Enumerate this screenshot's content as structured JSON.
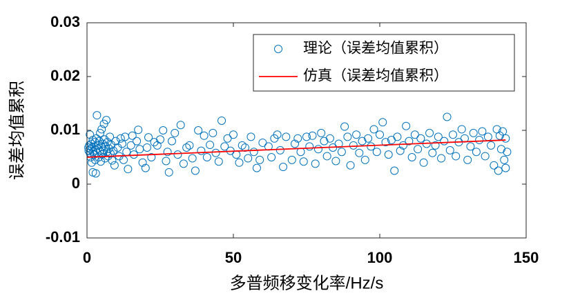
{
  "chart_data": {
    "type": "scatter",
    "xlabel": "多普频移变化率/Hz/s",
    "ylabel": "误差均值累积",
    "xlim": [
      0,
      150
    ],
    "xticks": [
      0,
      50,
      100,
      150
    ],
    "ylim": [
      -0.01,
      0.03
    ],
    "yticks": [
      -0.01,
      0,
      0.01,
      0.02,
      0.03
    ],
    "legend": "upper right",
    "series": [
      {
        "name": "理论（误差均值累积）",
        "kind": "scatter",
        "color": "#0072bd",
        "x": [
          0.5,
          0.6,
          0.8,
          1,
          1,
          1.2,
          1.3,
          1.5,
          1.6,
          1.8,
          2,
          2,
          2.2,
          2.4,
          2.5,
          2.7,
          2.8,
          3,
          3,
          3.2,
          3.4,
          3.5,
          3.7,
          3.8,
          4,
          4.2,
          4.4,
          4.5,
          4.7,
          4.9,
          5,
          5.2,
          5.4,
          5.6,
          5.8,
          6,
          6.2,
          6.4,
          6.6,
          6.8,
          7,
          7.2,
          7.5,
          7.8,
          8,
          8.3,
          8.6,
          9,
          9.4,
          9.8,
          10.5,
          11,
          11.5,
          12,
          12.5,
          13,
          13.5,
          14,
          15,
          15.5,
          16,
          17,
          17.5,
          18,
          19,
          20,
          20.5,
          21,
          22,
          23,
          24,
          25,
          26,
          27,
          27.5,
          28,
          29,
          30,
          31,
          32,
          33,
          34,
          35,
          36,
          37,
          38,
          39,
          40,
          41,
          42,
          43,
          44,
          45,
          46,
          47,
          48,
          49,
          50,
          51,
          52,
          53,
          54,
          55,
          56,
          57,
          58,
          59,
          60,
          62,
          63,
          64,
          65,
          66,
          67,
          68,
          70,
          71,
          72,
          73,
          74,
          75,
          76,
          77,
          78,
          79,
          80,
          81,
          82,
          83,
          84,
          85,
          86,
          87,
          88,
          89,
          90,
          91,
          92,
          93,
          94,
          95,
          96,
          97,
          98,
          99,
          100,
          101,
          102,
          103,
          104,
          105,
          106,
          107,
          108,
          109,
          110,
          111,
          112,
          113,
          114,
          115,
          116,
          117,
          118,
          119,
          120,
          121,
          122,
          123,
          124,
          125,
          126,
          127,
          128,
          129,
          130,
          131,
          132,
          133,
          134,
          135,
          136,
          137,
          138,
          139,
          140,
          140.5,
          141,
          141.5,
          142,
          142.5,
          143,
          143,
          143.5
        ],
        "values": [
          0.0068,
          0.0062,
          0.0072,
          0.0058,
          0.0092,
          0.0065,
          0.005,
          0.0075,
          0.004,
          0.0068,
          0.0082,
          0.0022,
          0.006,
          0.0055,
          0.007,
          0.0078,
          0.0045,
          0.0063,
          0.002,
          0.0085,
          0.0128,
          0.0058,
          0.0066,
          0.0072,
          0.005,
          0.008,
          0.0061,
          0.0095,
          0.0042,
          0.0069,
          0.0102,
          0.0056,
          0.0075,
          0.0064,
          0.0112,
          0.0083,
          0.0048,
          0.007,
          0.0119,
          0.006,
          0.0078,
          0.0052,
          0.0066,
          0.0088,
          0.0057,
          0.0073,
          0.0044,
          0.0062,
          0.0035,
          0.008,
          0.0068,
          0.0052,
          0.0085,
          0.0075,
          0.0045,
          0.0088,
          0.006,
          0.0028,
          0.0072,
          0.009,
          0.0055,
          0.008,
          0.0101,
          0.0065,
          0.004,
          0.003,
          0.0068,
          0.0087,
          0.005,
          0.0078,
          0.0072,
          0.0083,
          0.01,
          0.0043,
          0.006,
          0.0022,
          0.008,
          0.0095,
          0.0055,
          0.011,
          0.0038,
          0.0068,
          0.0072,
          0.0048,
          0.0025,
          0.01,
          0.0062,
          0.009,
          0.005,
          0.0073,
          0.0095,
          0.0058,
          0.0042,
          0.0118,
          0.007,
          0.0085,
          0.0062,
          0.0092,
          0.0055,
          0.004,
          0.0072,
          0.0068,
          0.0048,
          0.0088,
          0.006,
          0.003,
          0.0045,
          0.0077,
          0.007,
          0.005,
          0.0085,
          0.0092,
          0.0063,
          0.0032,
          0.0088,
          0.0045,
          0.0075,
          0.0085,
          0.006,
          0.0042,
          0.0088,
          0.007,
          0.009,
          0.0038,
          0.0065,
          0.0095,
          0.008,
          0.0052,
          0.0085,
          0.0068,
          0.0043,
          0.0075,
          0.006,
          0.0107,
          0.0088,
          0.0035,
          0.0072,
          0.0092,
          0.0058,
          0.008,
          0.0045,
          0.0085,
          0.007,
          0.0102,
          0.006,
          0.0092,
          0.0115,
          0.0078,
          0.0055,
          0.0082,
          0.0025,
          0.0088,
          0.0062,
          0.0072,
          0.0108,
          0.008,
          0.005,
          0.0092,
          0.0065,
          0.0085,
          0.004,
          0.0075,
          0.0095,
          0.0058,
          0.0072,
          0.0088,
          0.0048,
          0.008,
          0.0125,
          0.0063,
          0.0092,
          0.0052,
          0.0078,
          0.0102,
          0.0085,
          0.0045,
          0.007,
          0.0095,
          0.006,
          0.0082,
          0.0098,
          0.0052,
          0.0088,
          0.0072,
          0.0035,
          0.0102,
          0.0025,
          0.009,
          0.0065,
          0.0098,
          0.0045,
          0.0085,
          0.003,
          0.006
        ]
      },
      {
        "name": "仿真（误差均值累积）",
        "kind": "line",
        "color": "#ff0000",
        "x": [
          0,
          143
        ],
        "values": [
          0.005,
          0.0082
        ]
      }
    ]
  }
}
